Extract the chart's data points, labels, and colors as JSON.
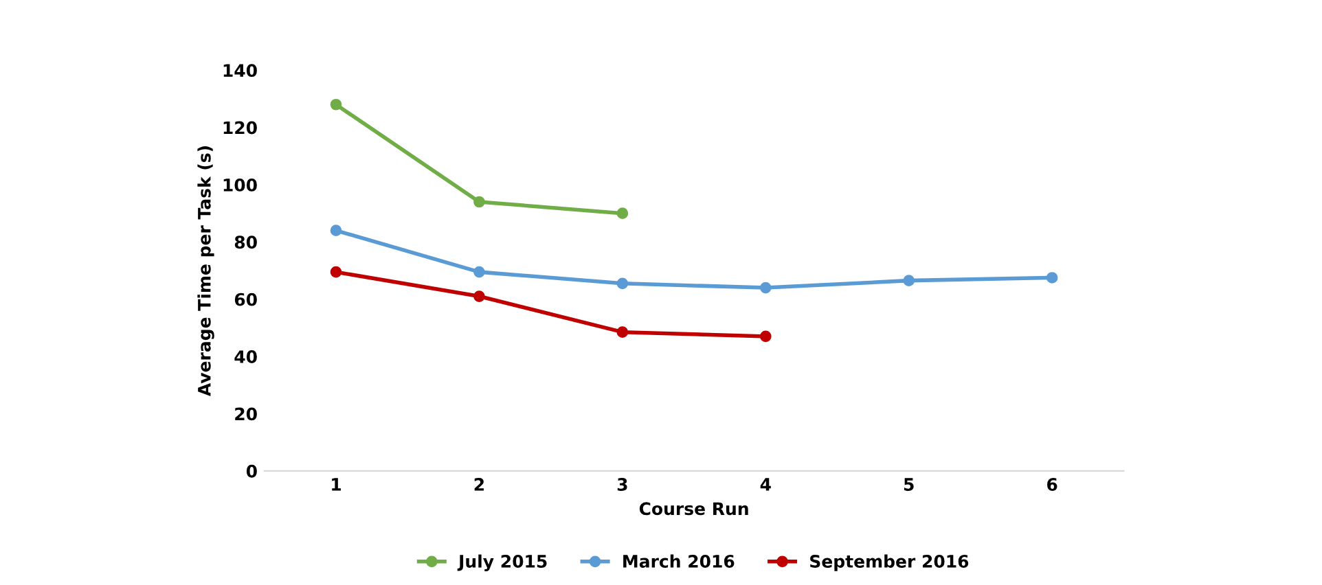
{
  "chart_data": {
    "type": "line",
    "xlabel": "Course Run",
    "ylabel": "Average Time per Task (s)",
    "categories": [
      "1",
      "2",
      "3",
      "4",
      "5",
      "6"
    ],
    "series": [
      {
        "name": "July 2015",
        "color": "#70ad47",
        "values": [
          128,
          94,
          90,
          null,
          null,
          null
        ]
      },
      {
        "name": "March 2016",
        "color": "#5b9bd5",
        "values": [
          84,
          69.5,
          65.5,
          64,
          66.5,
          67.5
        ]
      },
      {
        "name": "September 2016",
        "color": "#c00000",
        "values": [
          69.5,
          61,
          48.5,
          47,
          null,
          null
        ]
      }
    ],
    "ylim": [
      0,
      140
    ],
    "yticks": [
      0,
      20,
      40,
      60,
      80,
      100,
      120,
      140
    ],
    "grid": false,
    "legend": "bottom",
    "marker": "circle",
    "line_style": "solid"
  }
}
